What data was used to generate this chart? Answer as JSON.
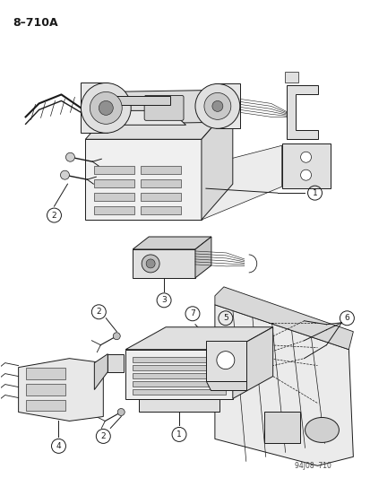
{
  "title": "8–710A",
  "watermark": "94J08  710",
  "bg": "#ffffff",
  "lc": "#1a1a1a",
  "lw": 0.7,
  "figsize": [
    4.14,
    5.33
  ],
  "dpi": 100
}
